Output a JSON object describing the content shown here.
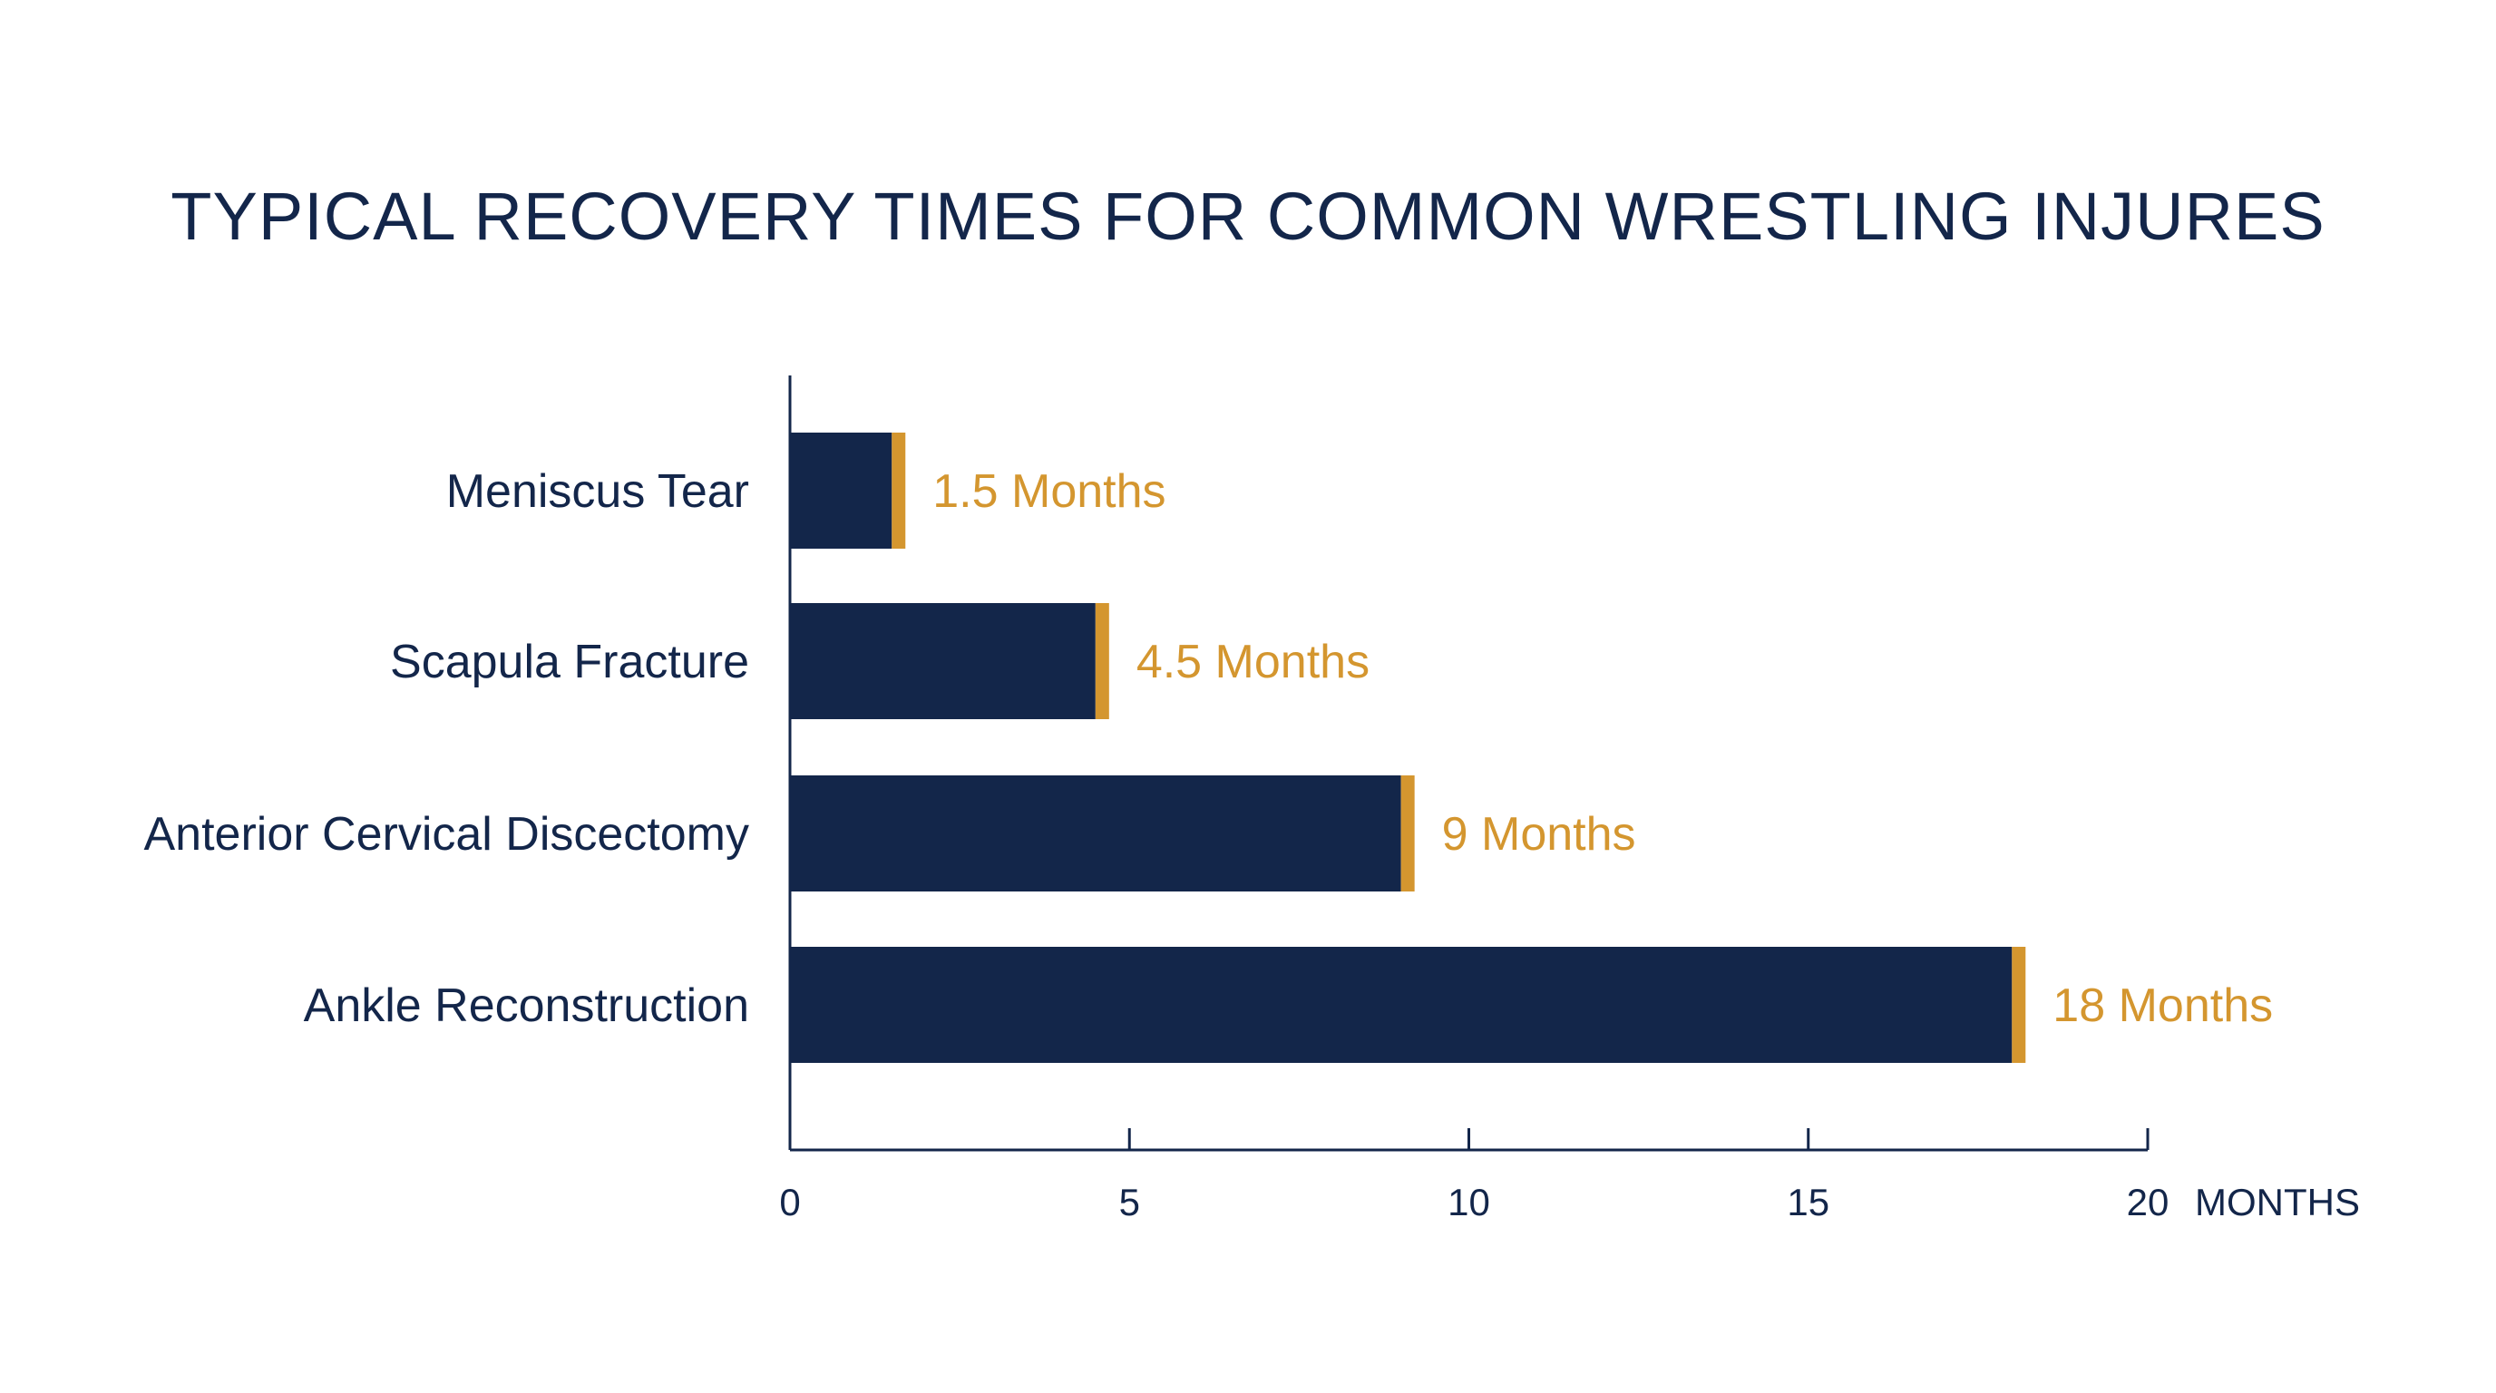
{
  "chart_data": {
    "type": "bar",
    "orientation": "horizontal",
    "title": "TYPICAL RECOVERY TIMES FOR COMMON WRESTLING INJURES",
    "categories": [
      "Meniscus Tear",
      "Scapula Fracture",
      "Anterior Cervical Discectomy",
      "Ankle Reconstruction"
    ],
    "values": [
      1.5,
      4.5,
      9,
      18
    ],
    "value_labels": [
      "1.5 Months",
      "4.5 Months",
      "9 Months",
      "18 Months"
    ],
    "xlabel": "MONTHS",
    "xlim": [
      0,
      20
    ],
    "xticks": [
      "0",
      "5",
      "10",
      "15",
      "20"
    ],
    "grid": false,
    "legend": "none",
    "colors": {
      "bar": "#13264a",
      "cap": "#d4962f",
      "text": "#13264a",
      "value_text": "#d4962f"
    }
  }
}
